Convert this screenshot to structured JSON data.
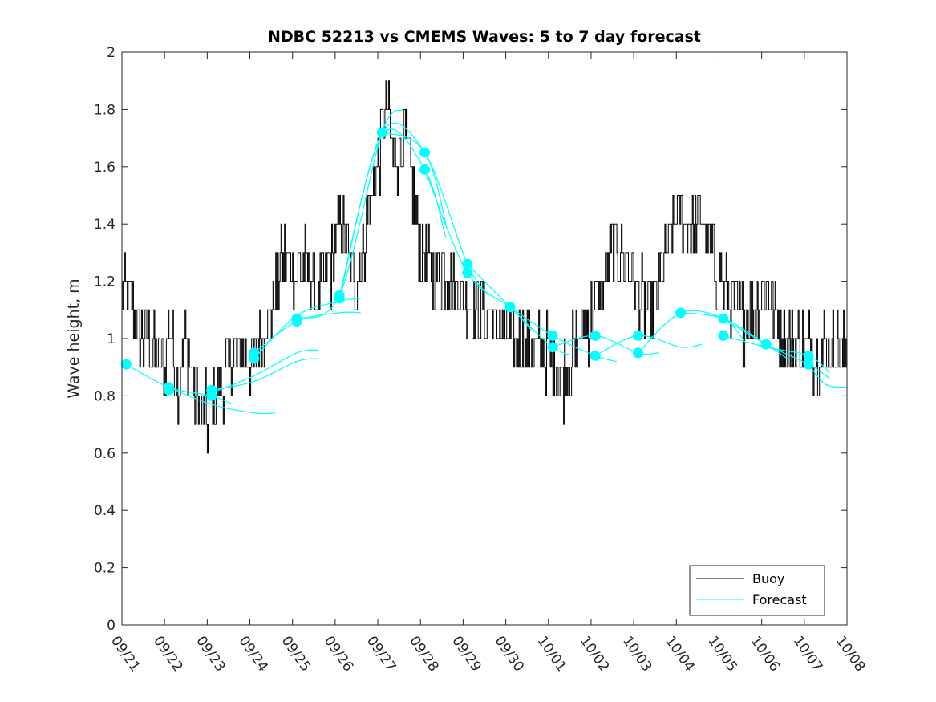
{
  "chart_data": {
    "type": "line",
    "title": "NDBC 52213 vs CMEMS Waves: 5 to 7 day forecast",
    "xlabel": "",
    "ylabel": "Wave height, m",
    "xlim": [
      0,
      17
    ],
    "ylim": [
      0,
      2
    ],
    "yticks": [
      0,
      0.2,
      0.4,
      0.6,
      0.8,
      1,
      1.2,
      1.4,
      1.6,
      1.8,
      2
    ],
    "ytick_labels": [
      "0",
      "0.2",
      "0.4",
      "0.6",
      "0.8",
      "1",
      "1.2",
      "1.4",
      "1.6",
      "1.8",
      "2"
    ],
    "xticks": [
      0,
      1,
      2,
      3,
      4,
      5,
      6,
      7,
      8,
      9,
      10,
      11,
      12,
      13,
      14,
      15,
      16,
      17
    ],
    "xtick_labels": [
      "09/21",
      "09/22",
      "09/23",
      "09/24",
      "09/25",
      "09/26",
      "09/27",
      "09/28",
      "09/29",
      "09/30",
      "10/01",
      "10/02",
      "10/03",
      "10/04",
      "10/05",
      "10/06",
      "10/07",
      "10/08"
    ],
    "colors": {
      "buoy": "#000000",
      "forecast": "#00ffff"
    },
    "legend": {
      "position": "bottom-right",
      "entries": [
        "Buoy",
        "Forecast"
      ]
    },
    "buoy_anchors": [
      [
        0,
        1.2
      ],
      [
        0.2,
        1.1
      ],
      [
        0.5,
        1.0
      ],
      [
        1.0,
        0.9
      ],
      [
        1.1,
        1.05
      ],
      [
        1.3,
        0.85
      ],
      [
        1.5,
        1.0
      ],
      [
        1.7,
        0.8
      ],
      [
        1.9,
        0.75
      ],
      [
        2.0,
        0.72
      ],
      [
        2.2,
        0.8
      ],
      [
        2.5,
        0.9
      ],
      [
        2.8,
        0.95
      ],
      [
        3.0,
        0.92
      ],
      [
        3.2,
        0.98
      ],
      [
        3.5,
        1.1
      ],
      [
        3.8,
        1.3
      ],
      [
        4.0,
        1.25
      ],
      [
        4.3,
        1.25
      ],
      [
        4.6,
        1.15
      ],
      [
        4.9,
        1.25
      ],
      [
        5.1,
        1.45
      ],
      [
        5.3,
        1.3
      ],
      [
        5.5,
        1.2
      ],
      [
        5.8,
        1.45
      ],
      [
        6.0,
        1.6
      ],
      [
        6.2,
        1.8
      ],
      [
        6.4,
        1.6
      ],
      [
        6.6,
        1.7
      ],
      [
        6.8,
        1.55
      ],
      [
        7.0,
        1.3
      ],
      [
        7.3,
        1.2
      ],
      [
        7.6,
        1.25
      ],
      [
        8.0,
        1.15
      ],
      [
        8.4,
        1.1
      ],
      [
        8.8,
        1.05
      ],
      [
        9.2,
        1.0
      ],
      [
        9.6,
        0.97
      ],
      [
        10.0,
        0.95
      ],
      [
        10.3,
        0.85
      ],
      [
        10.6,
        0.95
      ],
      [
        10.9,
        1.05
      ],
      [
        11.2,
        1.15
      ],
      [
        11.5,
        1.3
      ],
      [
        11.8,
        1.3
      ],
      [
        12.1,
        1.15
      ],
      [
        12.4,
        1.1
      ],
      [
        12.7,
        1.25
      ],
      [
        13.0,
        1.45
      ],
      [
        13.3,
        1.4
      ],
      [
        13.6,
        1.4
      ],
      [
        13.9,
        1.25
      ],
      [
        14.2,
        1.15
      ],
      [
        14.5,
        1.05
      ],
      [
        14.8,
        1.1
      ],
      [
        15.1,
        1.2
      ],
      [
        15.4,
        1.05
      ],
      [
        15.7,
        0.97
      ],
      [
        16.0,
        0.98
      ],
      [
        16.3,
        0.95
      ],
      [
        16.6,
        0.98
      ],
      [
        17.0,
        0.95
      ]
    ],
    "series": [
      {
        "name": "Forecast",
        "x": [
          0.1,
          1.1,
          2.1,
          2.6
        ],
        "y": [
          0.91,
          0.83,
          0.8,
          0.77
        ]
      },
      {
        "name": "Forecast",
        "x": [
          1.1,
          2.1,
          3.1,
          3.6
        ],
        "y": [
          0.83,
          0.77,
          0.74,
          0.74
        ]
      },
      {
        "name": "Forecast",
        "x": [
          2.1,
          3.1,
          4.1,
          4.6
        ],
        "y": [
          0.81,
          0.87,
          0.95,
          0.96
        ]
      },
      {
        "name": "Forecast",
        "x": [
          2.1,
          3.1,
          4.1,
          4.6
        ],
        "y": [
          0.82,
          0.85,
          0.92,
          0.93
        ]
      },
      {
        "name": "Forecast",
        "x": [
          3.1,
          4.1,
          5.1,
          5.6
        ],
        "y": [
          0.95,
          1.06,
          1.09,
          1.09
        ]
      },
      {
        "name": "Forecast",
        "x": [
          3.1,
          4.1,
          5.1,
          5.6
        ],
        "y": [
          0.93,
          1.08,
          1.13,
          1.14
        ]
      },
      {
        "name": "Forecast",
        "x": [
          4.1,
          5.1,
          6.1,
          6.6
        ],
        "y": [
          1.07,
          1.15,
          1.72,
          1.8
        ]
      },
      {
        "name": "Forecast",
        "x": [
          5.1,
          6.1,
          7.1,
          7.6
        ],
        "y": [
          1.14,
          1.72,
          1.65,
          1.4
        ]
      },
      {
        "name": "Forecast",
        "x": [
          5.1,
          6.1,
          7.1,
          7.6
        ],
        "y": [
          1.15,
          1.71,
          1.59,
          1.35
        ]
      },
      {
        "name": "Forecast",
        "x": [
          6.1,
          7.1,
          8.1,
          8.6
        ],
        "y": [
          1.72,
          1.65,
          1.26,
          1.15
        ]
      },
      {
        "name": "Forecast",
        "x": [
          7.1,
          8.1,
          9.1,
          9.6
        ],
        "y": [
          1.59,
          1.23,
          1.11,
          1.03
        ]
      },
      {
        "name": "Forecast",
        "x": [
          8.1,
          9.1,
          10.1,
          10.6
        ],
        "y": [
          1.26,
          1.11,
          0.97,
          0.94
        ]
      },
      {
        "name": "Forecast",
        "x": [
          9.1,
          10.1,
          11.1,
          11.6
        ],
        "y": [
          1.11,
          1.01,
          0.94,
          0.92
        ]
      },
      {
        "name": "Forecast",
        "x": [
          10.1,
          11.1,
          12.1,
          12.6
        ],
        "y": [
          0.97,
          1.01,
          0.95,
          0.95
        ]
      },
      {
        "name": "Forecast",
        "x": [
          11.1,
          12.1,
          13.1,
          13.6
        ],
        "y": [
          0.94,
          1.01,
          0.97,
          0.98
        ]
      },
      {
        "name": "Forecast",
        "x": [
          12.1,
          13.1,
          14.1,
          14.6
        ],
        "y": [
          0.95,
          1.09,
          1.07,
          0.99
        ]
      },
      {
        "name": "Forecast",
        "x": [
          13.1,
          14.1,
          15.1,
          15.6
        ],
        "y": [
          1.09,
          1.07,
          0.98,
          0.93
        ]
      },
      {
        "name": "Forecast",
        "x": [
          14.1,
          15.1,
          16.1,
          16.6
        ],
        "y": [
          1.07,
          0.98,
          0.91,
          0.86
        ]
      },
      {
        "name": "Forecast",
        "x": [
          14.1,
          15.1,
          16.1,
          16.6
        ],
        "y": [
          1.01,
          0.97,
          0.94,
          0.88
        ]
      },
      {
        "name": "Forecast",
        "x": [
          16.1,
          16.5,
          17.0
        ],
        "y": [
          0.91,
          0.84,
          0.83
        ]
      }
    ],
    "forecast_markers": {
      "x": [
        0.1,
        1.1,
        1.1,
        2.1,
        2.1,
        3.1,
        3.1,
        4.1,
        4.1,
        5.1,
        5.1,
        6.1,
        7.1,
        7.1,
        8.1,
        8.1,
        9.1,
        10.1,
        10.1,
        11.1,
        11.1,
        12.1,
        12.1,
        13.1,
        14.1,
        14.1,
        15.1,
        16.1,
        16.1
      ],
      "y": [
        0.91,
        0.83,
        0.82,
        0.82,
        0.8,
        0.95,
        0.93,
        1.07,
        1.06,
        1.15,
        1.14,
        1.72,
        1.65,
        1.59,
        1.26,
        1.23,
        1.11,
        1.01,
        0.97,
        1.01,
        0.94,
        1.01,
        0.95,
        1.09,
        1.07,
        1.01,
        0.98,
        0.94,
        0.91
      ]
    }
  }
}
